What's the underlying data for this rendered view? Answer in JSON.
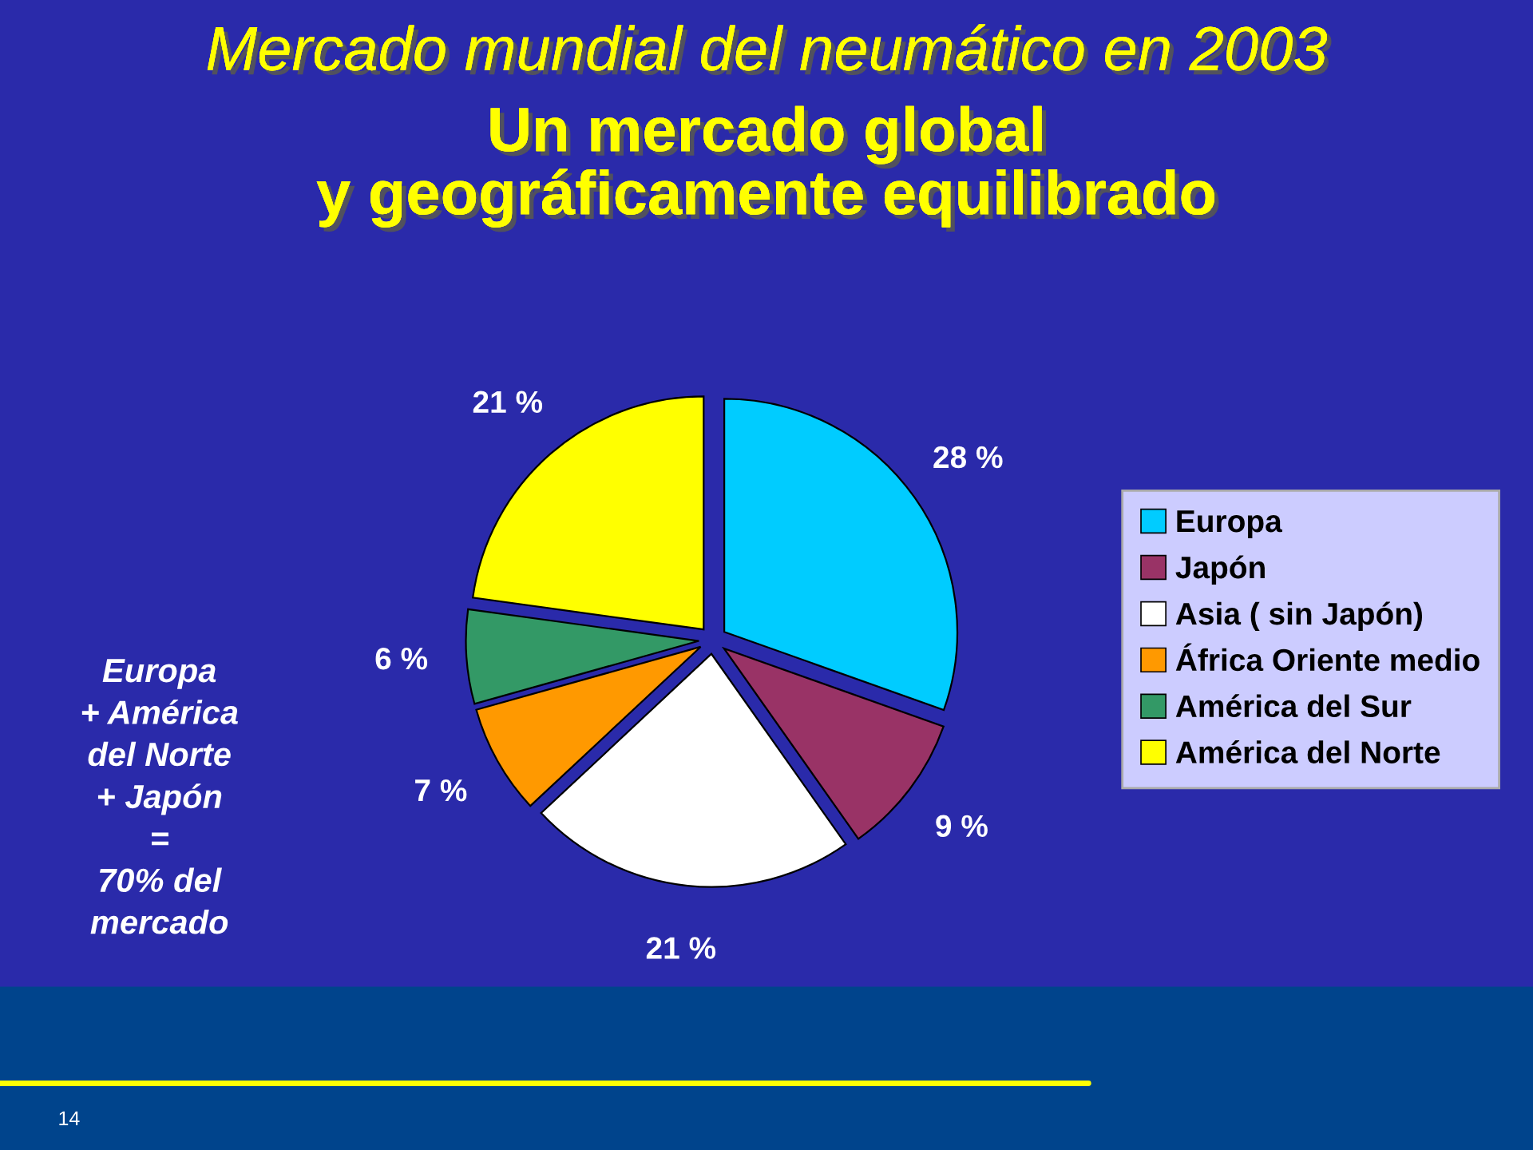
{
  "chart_data": {
    "type": "pie",
    "title": "Mercado mundial del neumático en 2003",
    "subtitle": "Un mercado global\ny geográficamente equilibrado",
    "categories": [
      "Europa",
      "Japón",
      "Asia ( sin Japón)",
      "África Oriente medio",
      "América del Sur",
      "América del Norte"
    ],
    "values": [
      28,
      9,
      21,
      7,
      6,
      21
    ],
    "value_labels": [
      "28 %",
      "9 %",
      "21 %",
      "7 %",
      "6 %",
      "21 %"
    ],
    "colors": [
      "#00ccff",
      "#993366",
      "#ffffff",
      "#ff9900",
      "#339966",
      "#ffff00"
    ],
    "legend": "right",
    "annotations": [
      "Europa\n+ América\ndel Norte\n+ Japón\n=\n70% del\nmercado",
      "14"
    ]
  }
}
